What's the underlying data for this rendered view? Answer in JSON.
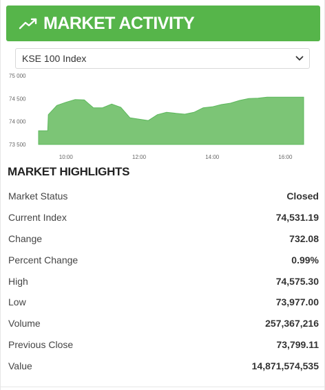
{
  "header": {
    "icon": "trending-up-icon",
    "title": "MARKET ACTIVITY",
    "background": "#56b54a"
  },
  "index_select": {
    "selected": "KSE 100 Index",
    "icon": "chevron-down-icon"
  },
  "chart_data": {
    "type": "area",
    "color": "#5cb85c",
    "ylim": [
      73500,
      75000
    ],
    "y_ticks": [
      "73 500",
      "74 000",
      "74 500",
      "75 000"
    ],
    "x_ticks": [
      "10:00",
      "12:00",
      "14:00",
      "16:00"
    ],
    "x": [
      "09:15",
      "09:30",
      "09:31",
      "09:45",
      "10:00",
      "10:15",
      "10:30",
      "10:45",
      "11:00",
      "11:15",
      "11:30",
      "11:45",
      "12:00",
      "12:15",
      "12:30",
      "12:45",
      "13:00",
      "13:15",
      "13:30",
      "13:45",
      "14:00",
      "14:15",
      "14:30",
      "14:45",
      "15:00",
      "15:15",
      "15:30",
      "15:45",
      "16:00",
      "16:15",
      "16:30"
    ],
    "values": [
      73799,
      73799,
      74150,
      74350,
      74420,
      74480,
      74470,
      74300,
      74300,
      74380,
      74310,
      74080,
      74050,
      74020,
      74150,
      74200,
      74180,
      74160,
      74200,
      74300,
      74320,
      74370,
      74400,
      74460,
      74500,
      74510,
      74531,
      74530,
      74531,
      74531,
      74531
    ]
  },
  "highlights": {
    "title": "MARKET HIGHLIGHTS",
    "rows": [
      {
        "label": "Market Status",
        "value": "Closed"
      },
      {
        "label": "Current Index",
        "value": "74,531.19"
      },
      {
        "label": "Change",
        "value": "732.08"
      },
      {
        "label": "Percent Change",
        "value": "0.99%"
      },
      {
        "label": "High",
        "value": "74,575.30"
      },
      {
        "label": "Low",
        "value": "73,977.00"
      },
      {
        "label": "Volume",
        "value": "257,367,216"
      },
      {
        "label": "Previous Close",
        "value": "73,799.11"
      },
      {
        "label": "Value",
        "value": "14,871,574,535"
      }
    ]
  }
}
